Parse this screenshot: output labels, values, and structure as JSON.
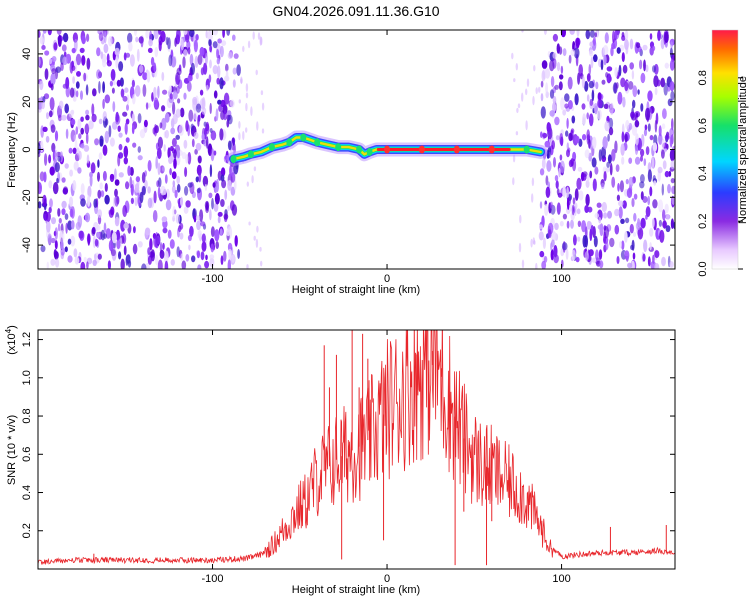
{
  "title": "GN04.2026.091.11.36.G10",
  "chart_data": [
    {
      "type": "heatmap",
      "panel": "spectrogram",
      "title": "GN04.2026.091.11.36.G10",
      "xlabel": "Height of straight line (km)",
      "ylabel": "Frequency (Hz)",
      "xlim": [
        -200,
        165
      ],
      "ylim": [
        -50,
        50
      ],
      "xticks": [
        -100,
        0,
        100
      ],
      "yticks": [
        -40,
        -20,
        0,
        20,
        40
      ],
      "noise_regions_km": [
        [
          -200,
          -85
        ],
        [
          88,
          165
        ]
      ],
      "clear_region_km": [
        -85,
        88
      ],
      "signal_trace": {
        "x": [
          -88,
          -82,
          -78,
          -72,
          -66,
          -60,
          -56,
          -52,
          -48,
          -44,
          -40,
          -34,
          -28,
          -22,
          -16,
          -13,
          -10,
          -6,
          0,
          10,
          20,
          30,
          40,
          50,
          60,
          70,
          80,
          88
        ],
        "y": [
          -4,
          -3,
          -2,
          -1,
          1,
          2,
          3,
          5,
          5,
          4,
          3,
          2,
          1,
          1,
          0,
          -2,
          -1,
          0,
          0,
          0,
          0,
          0,
          0,
          0,
          0,
          0,
          0,
          -1
        ],
        "peak_span_km": [
          -5,
          70
        ]
      },
      "colorbar": {
        "label": "Normalized spectral amplitude",
        "range": [
          0.0,
          1.0
        ],
        "ticks": [
          0.0,
          0.2,
          0.4,
          0.6,
          0.8
        ],
        "colormap": "purple-blue-cyan-green-yellow-orange-red"
      }
    },
    {
      "type": "line",
      "panel": "snr",
      "xlabel": "Height of straight line (km)",
      "ylabel": "SNR (10 * v/v)",
      "exponent_label": "(x10",
      "exponent_value": "4",
      "exponent_close": ")",
      "xlim": [
        -200,
        165
      ],
      "ylim": [
        0,
        1.25
      ],
      "xticks": [
        -100,
        0,
        100
      ],
      "yticks": [
        0.2,
        0.4,
        0.6,
        0.8,
        1.0,
        1.2
      ],
      "yticks_text": [
        "0.2",
        "0.4",
        "0.6",
        "0.8",
        "1.0",
        "1.2"
      ],
      "series": [
        {
          "name": "SNR",
          "color": "#e8262b",
          "envelope_x": [
            -200,
            -180,
            -160,
            -140,
            -120,
            -100,
            -80,
            -72,
            -65,
            -58,
            -52,
            -46,
            -40,
            -35,
            -28,
            -20,
            -12,
            -5,
            0,
            5,
            10,
            15,
            20,
            25,
            28,
            32,
            38,
            45,
            52,
            60,
            68,
            75,
            82,
            88,
            94,
            100,
            110,
            125,
            140,
            155,
            165
          ],
          "envelope_y": [
            0.03,
            0.04,
            0.04,
            0.04,
            0.04,
            0.04,
            0.05,
            0.07,
            0.13,
            0.22,
            0.3,
            0.36,
            0.48,
            0.52,
            0.58,
            0.62,
            0.66,
            0.76,
            0.84,
            0.88,
            0.93,
            0.98,
            1.03,
            1.06,
            1.08,
            0.98,
            0.82,
            0.66,
            0.56,
            0.52,
            0.46,
            0.42,
            0.33,
            0.22,
            0.1,
            0.06,
            0.07,
            0.08,
            0.08,
            0.09,
            0.08
          ],
          "spikes": [
            {
              "x": -36,
              "y": 1.17,
              "down": false
            },
            {
              "x": -33,
              "y": 0.95,
              "down": false
            },
            {
              "x": -29,
              "y": 1.12,
              "down": false
            },
            {
              "x": -26,
              "y": 0.05,
              "down": true
            },
            {
              "x": -20,
              "y": 1.25,
              "down": false
            },
            {
              "x": -16,
              "y": 0.95,
              "down": false
            },
            {
              "x": -14,
              "y": 1.23,
              "down": false
            },
            {
              "x": -11,
              "y": 1.1,
              "down": false
            },
            {
              "x": -2,
              "y": 0.15,
              "down": true
            },
            {
              "x": 26,
              "y": 1.14,
              "down": false
            },
            {
              "x": 31,
              "y": 1.05,
              "down": false
            },
            {
              "x": 39,
              "y": 0.02,
              "down": true
            },
            {
              "x": 44,
              "y": 0.3,
              "down": true
            },
            {
              "x": 57,
              "y": 0.02,
              "down": true
            },
            {
              "x": 60,
              "y": 0.25,
              "down": true
            },
            {
              "x": -168,
              "y": 0.08,
              "down": false
            },
            {
              "x": 128,
              "y": 0.22,
              "down": false
            },
            {
              "x": 160,
              "y": 0.23,
              "down": false
            }
          ]
        }
      ]
    }
  ]
}
